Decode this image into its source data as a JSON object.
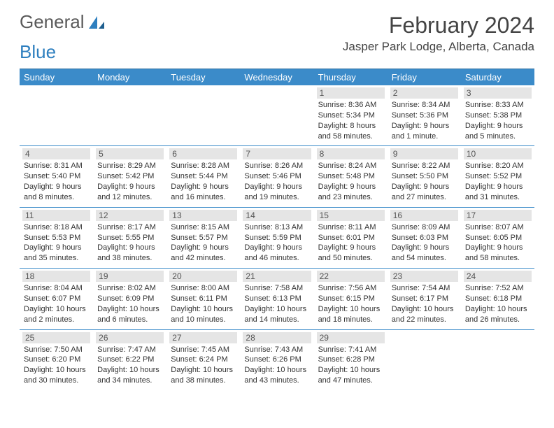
{
  "logo": {
    "word1": "General",
    "word2": "Blue"
  },
  "title": "February 2024",
  "location": "Jasper Park Lodge, Alberta, Canada",
  "colors": {
    "header_bg": "#3b8bc9",
    "header_text": "#ffffff",
    "daynum_bg": "#e5e5e5",
    "rule": "#3b8bc9",
    "logo_gray": "#5a5a5a",
    "logo_blue": "#2e7fbf",
    "text": "#333333"
  },
  "day_headers": [
    "Sunday",
    "Monday",
    "Tuesday",
    "Wednesday",
    "Thursday",
    "Friday",
    "Saturday"
  ],
  "weeks": [
    [
      null,
      null,
      null,
      null,
      {
        "n": "1",
        "sunrise": "8:36 AM",
        "sunset": "5:34 PM",
        "daylight": "8 hours and 58 minutes."
      },
      {
        "n": "2",
        "sunrise": "8:34 AM",
        "sunset": "5:36 PM",
        "daylight": "9 hours and 1 minute."
      },
      {
        "n": "3",
        "sunrise": "8:33 AM",
        "sunset": "5:38 PM",
        "daylight": "9 hours and 5 minutes."
      }
    ],
    [
      {
        "n": "4",
        "sunrise": "8:31 AM",
        "sunset": "5:40 PM",
        "daylight": "9 hours and 8 minutes."
      },
      {
        "n": "5",
        "sunrise": "8:29 AM",
        "sunset": "5:42 PM",
        "daylight": "9 hours and 12 minutes."
      },
      {
        "n": "6",
        "sunrise": "8:28 AM",
        "sunset": "5:44 PM",
        "daylight": "9 hours and 16 minutes."
      },
      {
        "n": "7",
        "sunrise": "8:26 AM",
        "sunset": "5:46 PM",
        "daylight": "9 hours and 19 minutes."
      },
      {
        "n": "8",
        "sunrise": "8:24 AM",
        "sunset": "5:48 PM",
        "daylight": "9 hours and 23 minutes."
      },
      {
        "n": "9",
        "sunrise": "8:22 AM",
        "sunset": "5:50 PM",
        "daylight": "9 hours and 27 minutes."
      },
      {
        "n": "10",
        "sunrise": "8:20 AM",
        "sunset": "5:52 PM",
        "daylight": "9 hours and 31 minutes."
      }
    ],
    [
      {
        "n": "11",
        "sunrise": "8:18 AM",
        "sunset": "5:53 PM",
        "daylight": "9 hours and 35 minutes."
      },
      {
        "n": "12",
        "sunrise": "8:17 AM",
        "sunset": "5:55 PM",
        "daylight": "9 hours and 38 minutes."
      },
      {
        "n": "13",
        "sunrise": "8:15 AM",
        "sunset": "5:57 PM",
        "daylight": "9 hours and 42 minutes."
      },
      {
        "n": "14",
        "sunrise": "8:13 AM",
        "sunset": "5:59 PM",
        "daylight": "9 hours and 46 minutes."
      },
      {
        "n": "15",
        "sunrise": "8:11 AM",
        "sunset": "6:01 PM",
        "daylight": "9 hours and 50 minutes."
      },
      {
        "n": "16",
        "sunrise": "8:09 AM",
        "sunset": "6:03 PM",
        "daylight": "9 hours and 54 minutes."
      },
      {
        "n": "17",
        "sunrise": "8:07 AM",
        "sunset": "6:05 PM",
        "daylight": "9 hours and 58 minutes."
      }
    ],
    [
      {
        "n": "18",
        "sunrise": "8:04 AM",
        "sunset": "6:07 PM",
        "daylight": "10 hours and 2 minutes."
      },
      {
        "n": "19",
        "sunrise": "8:02 AM",
        "sunset": "6:09 PM",
        "daylight": "10 hours and 6 minutes."
      },
      {
        "n": "20",
        "sunrise": "8:00 AM",
        "sunset": "6:11 PM",
        "daylight": "10 hours and 10 minutes."
      },
      {
        "n": "21",
        "sunrise": "7:58 AM",
        "sunset": "6:13 PM",
        "daylight": "10 hours and 14 minutes."
      },
      {
        "n": "22",
        "sunrise": "7:56 AM",
        "sunset": "6:15 PM",
        "daylight": "10 hours and 18 minutes."
      },
      {
        "n": "23",
        "sunrise": "7:54 AM",
        "sunset": "6:17 PM",
        "daylight": "10 hours and 22 minutes."
      },
      {
        "n": "24",
        "sunrise": "7:52 AM",
        "sunset": "6:18 PM",
        "daylight": "10 hours and 26 minutes."
      }
    ],
    [
      {
        "n": "25",
        "sunrise": "7:50 AM",
        "sunset": "6:20 PM",
        "daylight": "10 hours and 30 minutes."
      },
      {
        "n": "26",
        "sunrise": "7:47 AM",
        "sunset": "6:22 PM",
        "daylight": "10 hours and 34 minutes."
      },
      {
        "n": "27",
        "sunrise": "7:45 AM",
        "sunset": "6:24 PM",
        "daylight": "10 hours and 38 minutes."
      },
      {
        "n": "28",
        "sunrise": "7:43 AM",
        "sunset": "6:26 PM",
        "daylight": "10 hours and 43 minutes."
      },
      {
        "n": "29",
        "sunrise": "7:41 AM",
        "sunset": "6:28 PM",
        "daylight": "10 hours and 47 minutes."
      },
      null,
      null
    ]
  ]
}
